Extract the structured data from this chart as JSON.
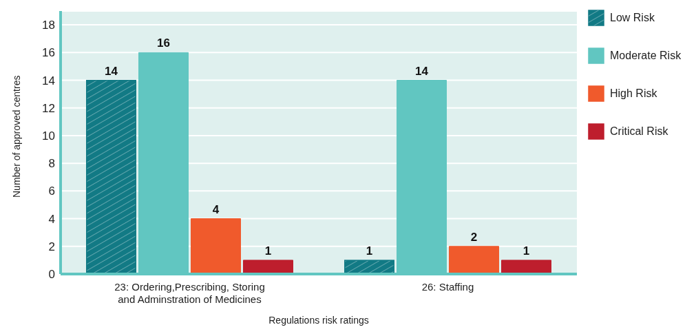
{
  "chart_data": {
    "type": "bar",
    "xlabel": "Regulations risk ratings",
    "ylabel": "Number of approved centres",
    "categories": [
      "23: Ordering,Prescribing, Storing and Adminstration of Medicines",
      "26: Staffing"
    ],
    "series": [
      {
        "name": "Low Risk",
        "color": "#127a85",
        "values": [
          14,
          1
        ]
      },
      {
        "name": "Moderate Risk",
        "color": "#61c6c1",
        "values": [
          16,
          14
        ]
      },
      {
        "name": "High Risk",
        "color": "#f05a2c",
        "values": [
          4,
          2
        ]
      },
      {
        "name": "Critical Risk",
        "color": "#be1e2d",
        "values": [
          1,
          1
        ]
      }
    ],
    "ylim": [
      0,
      19
    ],
    "yticks": [
      0,
      2,
      4,
      6,
      8,
      10,
      12,
      14,
      16,
      18
    ],
    "grid": "y",
    "data_labels": true,
    "legend": "top right"
  }
}
